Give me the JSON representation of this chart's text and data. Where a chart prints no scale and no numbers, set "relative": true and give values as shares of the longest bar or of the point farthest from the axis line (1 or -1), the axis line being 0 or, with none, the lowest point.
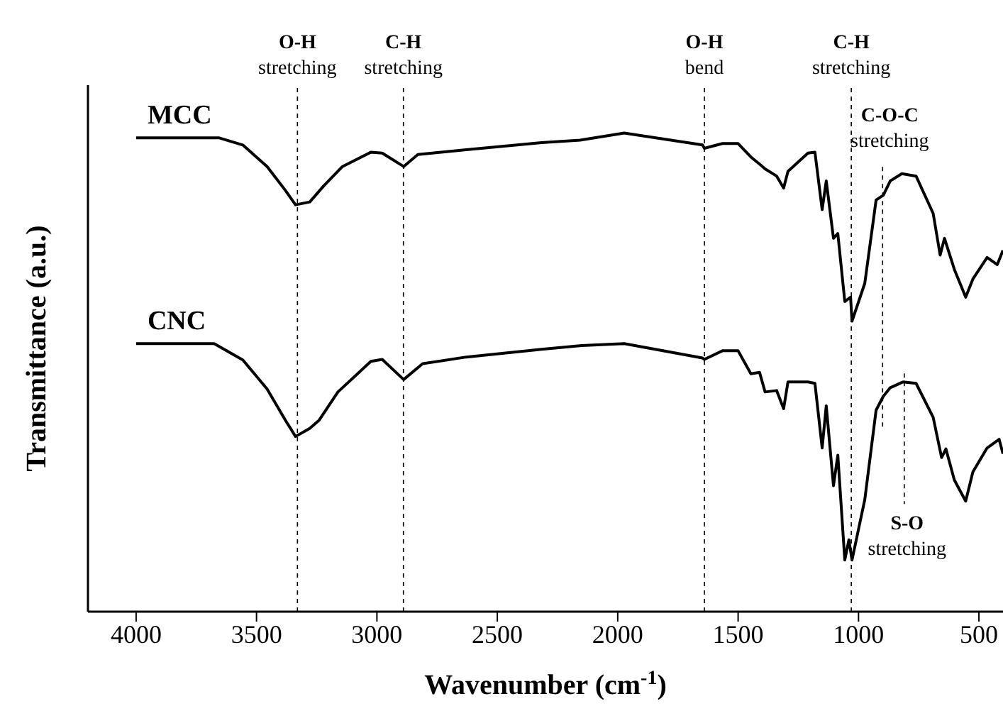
{
  "chart_data": {
    "type": "line",
    "relative": true,
    "xlabel": "Wavenumber (cm$^{-1}$)",
    "ylabel": "Transmittance (a.u.)",
    "xlim": [
      4200,
      400
    ],
    "xticks": [
      4000,
      3500,
      3000,
      2500,
      2000,
      1500,
      1000,
      500
    ],
    "series": [
      {
        "name": "MCC",
        "color": "#000000",
        "x": [
          4000,
          3657,
          3557,
          3456,
          3380,
          3338,
          3279,
          3220,
          3143,
          3025,
          2978,
          2889,
          2830,
          2629,
          2316,
          2156,
          1973,
          1648,
          1640,
          1565,
          1500,
          1447,
          1411,
          1388,
          1340,
          1311,
          1293,
          1210,
          1181,
          1151,
          1134,
          1104,
          1086,
          1057,
          1033,
          1027,
          974,
          927,
          897,
          868,
          820,
          761,
          690,
          661,
          643,
          602,
          555,
          525,
          466,
          424,
          400
        ],
        "values": [
          0.99,
          0.99,
          0.975,
          0.93,
          0.88,
          0.85,
          0.856,
          0.89,
          0.93,
          0.96,
          0.958,
          0.93,
          0.955,
          0.965,
          0.98,
          0.985,
          1,
          0.975,
          0.968,
          0.978,
          0.978,
          0.95,
          0.935,
          0.925,
          0.91,
          0.885,
          0.92,
          0.958,
          0.96,
          0.84,
          0.9,
          0.78,
          0.79,
          0.648,
          0.657,
          0.607,
          0.686,
          0.86,
          0.87,
          0.9,
          0.915,
          0.91,
          0.832,
          0.745,
          0.78,
          0.715,
          0.657,
          0.695,
          0.74,
          0.725,
          0.755
        ]
      },
      {
        "name": "CNC",
        "color": "#000000",
        "x": [
          4000,
          3676,
          3557,
          3456,
          3380,
          3338,
          3279,
          3240,
          3162,
          3025,
          2978,
          2889,
          2810,
          2629,
          2316,
          2150,
          1973,
          1648,
          1640,
          1565,
          1500,
          1447,
          1411,
          1388,
          1340,
          1311,
          1293,
          1210,
          1181,
          1151,
          1134,
          1104,
          1086,
          1057,
          1040,
          1027,
          974,
          927,
          897,
          868,
          815,
          761,
          690,
          655,
          637,
          602,
          555,
          525,
          466,
          416,
          400
        ],
        "values": [
          0.56,
          0.56,
          0.526,
          0.465,
          0.4,
          0.366,
          0.383,
          0.4,
          0.459,
          0.523,
          0.527,
          0.485,
          0.518,
          0.532,
          0.548,
          0.556,
          0.56,
          0.53,
          0.527,
          0.545,
          0.545,
          0.497,
          0.5,
          0.459,
          0.462,
          0.424,
          0.48,
          0.48,
          0.477,
          0.342,
          0.43,
          0.263,
          0.327,
          0.108,
          0.15,
          0.108,
          0.234,
          0.421,
          0.45,
          0.468,
          0.48,
          0.477,
          0.406,
          0.322,
          0.34,
          0.275,
          0.231,
          0.292,
          0.342,
          0.36,
          0.33
        ]
      }
    ],
    "ref_lines": [
      {
        "axis": "x",
        "value": 3330,
        "label": "O-H stretching",
        "line_style": "dashed"
      },
      {
        "axis": "x",
        "value": 2890,
        "label": "C-H stretching",
        "line_style": "dashed"
      },
      {
        "axis": "x",
        "value": 1640,
        "label": "O-H bend",
        "line_style": "dashed"
      },
      {
        "axis": "x",
        "value": 1030,
        "label": "C-H stretching",
        "line_style": "dashed"
      }
    ],
    "annotations": [
      {
        "text": "C-O-C stretching",
        "x": 900,
        "y": 0.87
      },
      {
        "text": "S-O stretching",
        "x": 810,
        "y": 0.48
      }
    ]
  }
}
